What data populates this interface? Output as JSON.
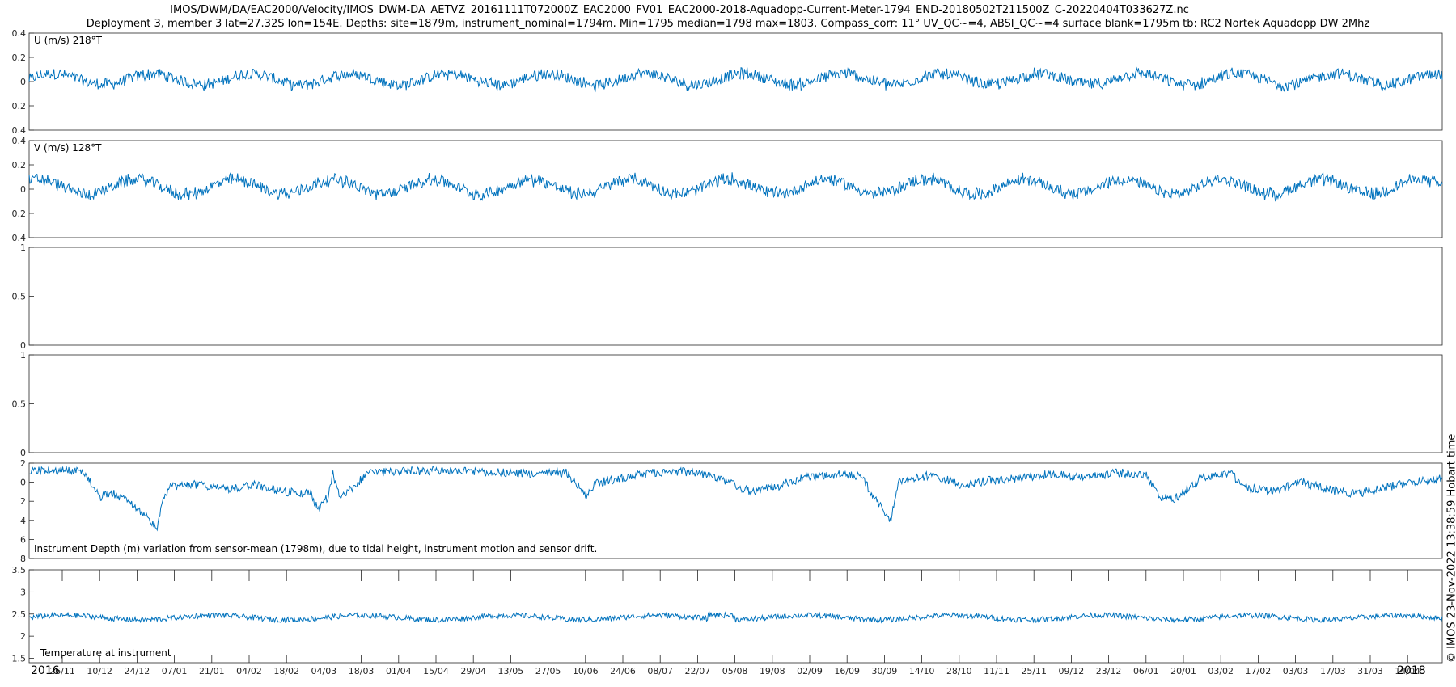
{
  "title": {
    "line1": "IMOS/DWM/DA/EAC2000/Velocity/IMOS_DWM-DA_AETVZ_20161111T072000Z_EAC2000_FV01_EAC2000-2018-Aquadopp-Current-Meter-1794_END-20180502T211500Z_C-20220404T033627Z.nc",
    "line2": "Deployment 3, member 3 lat=27.32S lon=154E. Depths: site=1879m, instrument_nominal=1794m. Min=1795 median=1798 max=1803. Compass_corr: 11° UV_QC~=4, ABSI_QC~=4 surface blank=1795m tb: RC2 Nortek Aquadopp DW 2Mhz"
  },
  "credit": "© IMOS 23-Nov-2022 13:38:59 Hobart time",
  "x_axis": {
    "year_left": "2016",
    "year_right": "2018",
    "tick_labels": [
      "26/11",
      "10/12",
      "24/12",
      "07/01",
      "21/01",
      "04/02",
      "18/02",
      "04/03",
      "18/03",
      "01/04",
      "15/04",
      "29/04",
      "13/05",
      "27/05",
      "10/06",
      "24/06",
      "08/07",
      "22/07",
      "05/08",
      "19/08",
      "02/09",
      "16/09",
      "30/09",
      "14/10",
      "28/10",
      "11/11",
      "25/11",
      "09/12",
      "23/12",
      "06/01",
      "20/01",
      "03/02",
      "17/02",
      "03/03",
      "17/03",
      "31/03",
      "14/04"
    ]
  },
  "chart_data": [
    {
      "type": "line",
      "label": "U (m/s) 218°T",
      "series": [
        {
          "name": "U",
          "mean": 0.02,
          "amplitude": 0.06,
          "color": "#0072BD"
        }
      ],
      "ylim": [
        -0.4,
        0.4
      ],
      "yticks": [
        0.4,
        0.2,
        0,
        -0.2,
        -0.4
      ],
      "ytick_labels": [
        "0.4",
        "0.2",
        "0",
        "0.2",
        "0.4"
      ]
    },
    {
      "type": "line",
      "label": "V (m/s) 128°T",
      "series": [
        {
          "name": "V",
          "mean": 0.02,
          "amplitude": 0.08,
          "color": "#0072BD"
        }
      ],
      "ylim": [
        -0.4,
        0.4
      ],
      "yticks": [
        0.4,
        0.2,
        0,
        -0.2,
        -0.4
      ],
      "ytick_labels": [
        "0.4",
        "0.2",
        "0",
        "0.2",
        "0.4"
      ]
    },
    {
      "type": "line",
      "label": "",
      "series": [],
      "ylim": [
        0,
        1
      ],
      "yticks": [
        1,
        0.5,
        0
      ],
      "ytick_labels": [
        "1",
        "0.5",
        "0"
      ]
    },
    {
      "type": "line",
      "label": "",
      "series": [],
      "ylim": [
        0,
        1
      ],
      "yticks": [
        1,
        0.5,
        0
      ],
      "ytick_labels": [
        "1",
        "0.5",
        "0"
      ]
    },
    {
      "type": "line",
      "label": "Instrument Depth (m) variation from sensor-mean (1798m), due to tidal height, instrument motion and sensor drift.",
      "series": [
        {
          "name": "Depth anomaly",
          "color": "#0072BD"
        }
      ],
      "ylim": [
        -2,
        8
      ],
      "y_reversed": true,
      "yticks": [
        -2,
        0,
        2,
        4,
        6,
        8
      ],
      "ytick_labels": [
        "2",
        "0",
        "2",
        "4",
        "6",
        "8"
      ]
    },
    {
      "type": "line",
      "label": "Temperature at instrument",
      "series": [
        {
          "name": "Temperature",
          "mean": 2.42,
          "color": "#0072BD"
        }
      ],
      "ylim": [
        1.4,
        3.5
      ],
      "yticks": [
        3.5,
        3,
        2.5,
        2,
        1.5
      ],
      "ytick_labels": [
        "3.5",
        "3",
        "2.5",
        "2",
        "1.5"
      ]
    }
  ]
}
